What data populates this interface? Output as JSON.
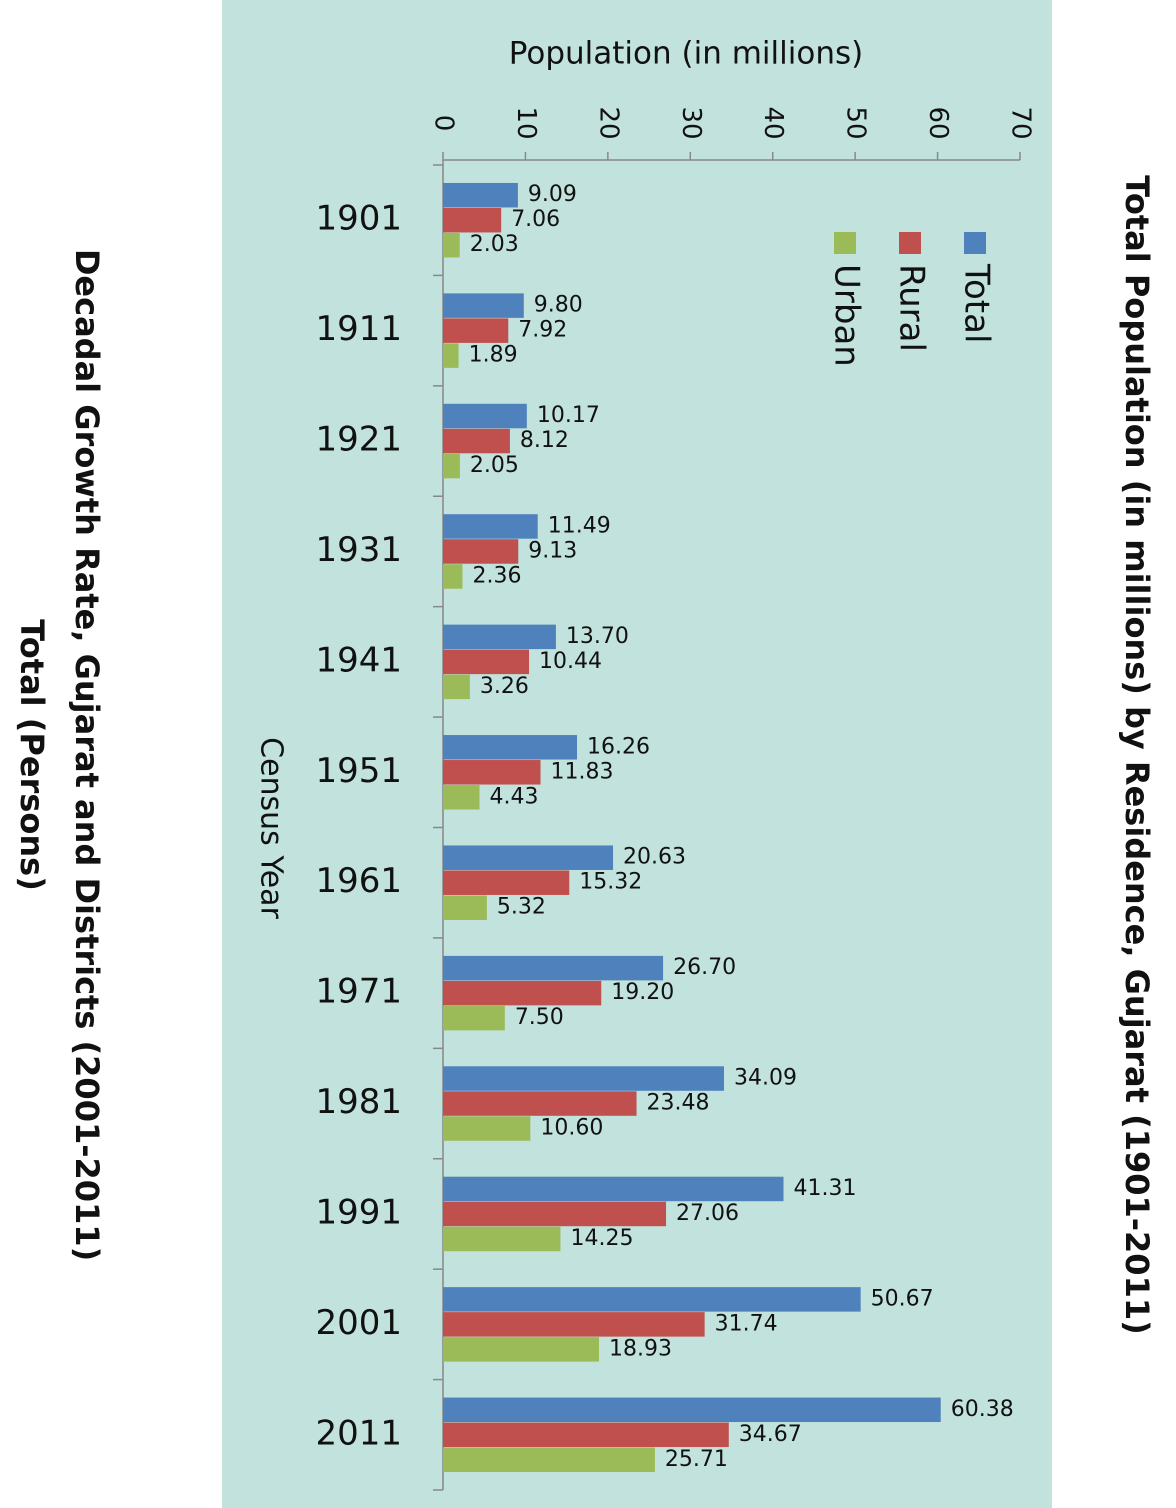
{
  "chart_data": {
    "type": "bar",
    "orientation": "horizontal",
    "title": "Total Population (in millions) by Residence, Gujarat (1901-2011)",
    "x_label": "Population (in millions)",
    "y_label": "Census Year",
    "notes": [
      "Decadal Growth Rate, Gujarat and Districts (2001-2011)",
      "Total (Persons)"
    ],
    "categories": [
      "1901",
      "1911",
      "1921",
      "1931",
      "1941",
      "1951",
      "1961",
      "1971",
      "1981",
      "1991",
      "2001",
      "2011"
    ],
    "series": [
      {
        "name": "Total",
        "color": "#4f81bd",
        "values": [
          9.09,
          9.8,
          10.17,
          11.49,
          13.7,
          16.26,
          20.63,
          26.7,
          34.09,
          41.31,
          50.67,
          60.38
        ],
        "value_labels": [
          "9.09",
          "9.80",
          "10.17",
          "11.49",
          "13.70",
          "16.26",
          "20.63",
          "26.70",
          "34.09",
          "41.31",
          "50.67",
          "60.38"
        ]
      },
      {
        "name": "Rural",
        "color": "#c0504d",
        "values": [
          7.06,
          7.92,
          8.12,
          9.13,
          10.44,
          11.83,
          15.32,
          19.2,
          23.48,
          27.06,
          31.74,
          34.67
        ],
        "value_labels": [
          "7.06",
          "7.92",
          "8.12",
          "9.13",
          "10.44",
          "11.83",
          "15.32",
          "19.20",
          "23.48",
          "27.06",
          "31.74",
          "34.67"
        ]
      },
      {
        "name": "Urban",
        "color": "#9bbb59",
        "values": [
          2.03,
          1.89,
          2.05,
          2.36,
          3.26,
          4.43,
          5.32,
          7.5,
          10.6,
          14.25,
          18.93,
          25.71
        ],
        "value_labels": [
          "2.03",
          "1.89",
          "2.05",
          "2.36",
          "3.26",
          "4.43",
          "5.32",
          "7.50",
          "10.60",
          "14.25",
          "18.93",
          "25.71"
        ]
      }
    ],
    "xlim": [
      0,
      70
    ],
    "xticks": [
      0,
      10,
      20,
      30,
      40,
      50,
      60,
      70
    ],
    "background": "#c2e3dd"
  }
}
